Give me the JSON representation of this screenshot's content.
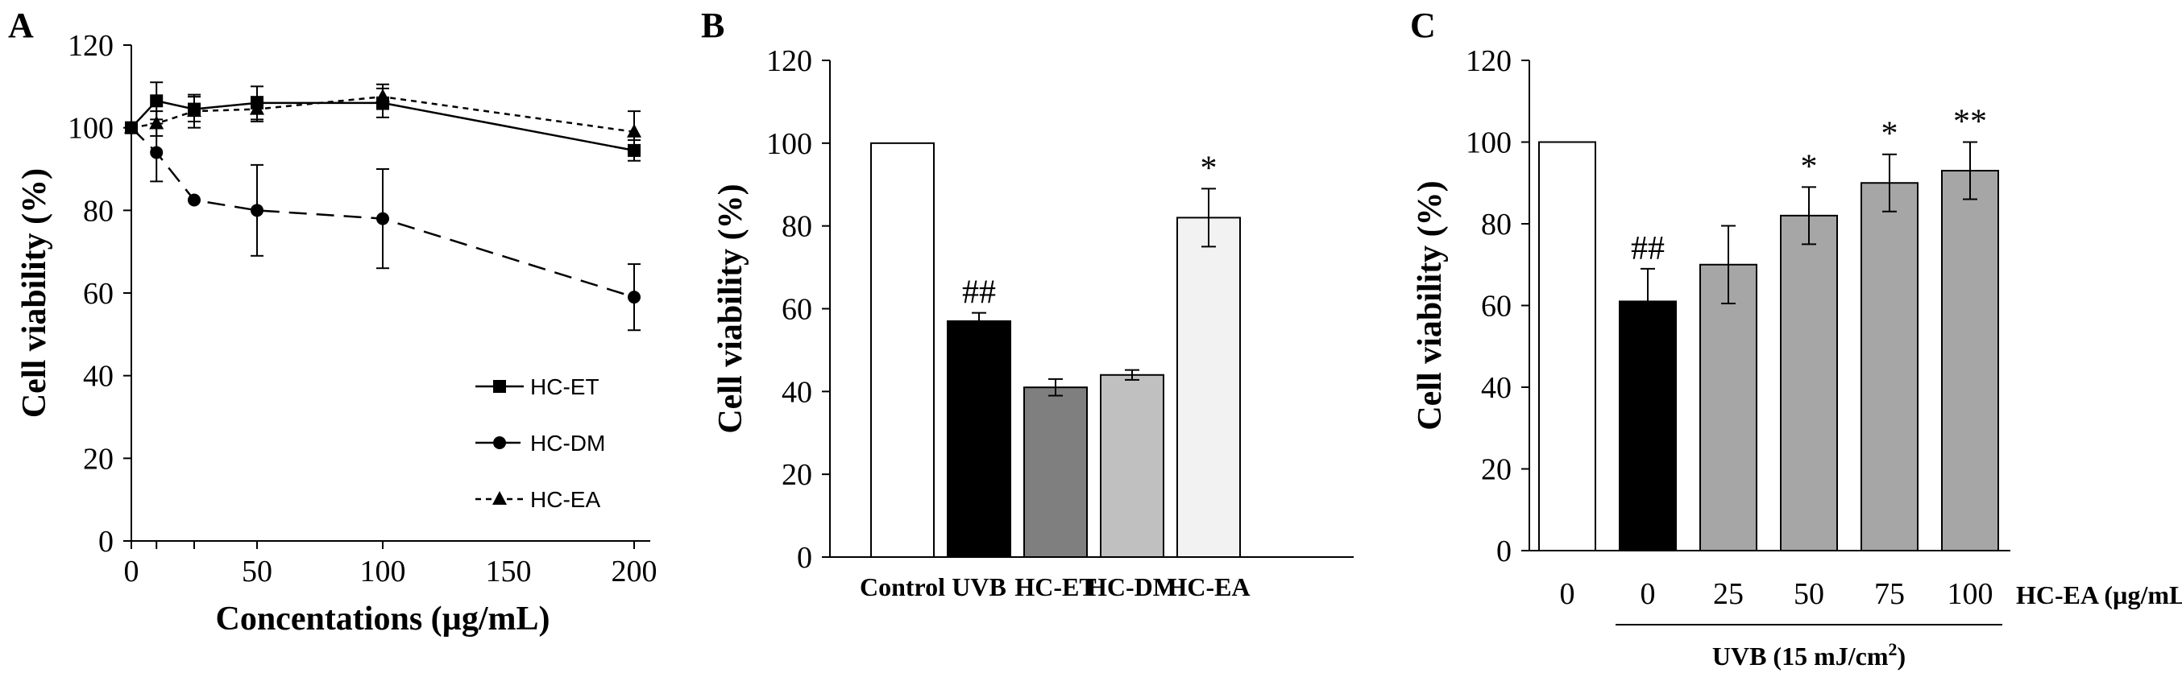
{
  "chart_data": [
    {
      "panel": "A",
      "type": "line",
      "ylabel": "Cell viability  (%)",
      "xlabel": "Concentations (µg/mL)",
      "xlim": [
        0,
        200
      ],
      "ylim": [
        0,
        120
      ],
      "xticks": [
        0,
        50,
        100,
        150,
        200
      ],
      "yticks": [
        0,
        20,
        40,
        60,
        80,
        100,
        120
      ],
      "x": [
        0,
        10,
        25,
        50,
        100,
        200
      ],
      "series": [
        {
          "name": "HC-ET",
          "style": "solid",
          "marker": "square",
          "values": [
            100,
            106.5,
            104.5,
            106,
            106,
            94.5
          ],
          "errors": [
            0,
            4.5,
            3,
            4,
            3.5,
            2.5
          ]
        },
        {
          "name": "HC-DM",
          "style": "dashed",
          "marker": "circle",
          "values": [
            100,
            94,
            82.5,
            80,
            78,
            59
          ],
          "errors": [
            0,
            7,
            0,
            11,
            12,
            8
          ]
        },
        {
          "name": "HC-EA",
          "style": "dotted",
          "marker": "triangle",
          "values": [
            100,
            101,
            104,
            104.5,
            107.5,
            99
          ],
          "errors": [
            0,
            3,
            4,
            3,
            3,
            5
          ]
        }
      ]
    },
    {
      "panel": "B",
      "type": "bar",
      "ylabel": "Cell viability  (%)",
      "ylim": [
        0,
        120
      ],
      "yticks": [
        0,
        20,
        40,
        60,
        80,
        100,
        120
      ],
      "categories": [
        "Control",
        "UVB",
        "HC-ET",
        "HC-DM",
        "HC-EA"
      ],
      "values": [
        100,
        57,
        41,
        44,
        82
      ],
      "errors": [
        0,
        2,
        2,
        1.2,
        7
      ],
      "colors": [
        "#ffffff",
        "#000000",
        "#7f7f7f",
        "#c0c0c0",
        "#f2f2f2"
      ],
      "annotations": [
        "",
        "##",
        "",
        "",
        "*"
      ]
    },
    {
      "panel": "C",
      "type": "bar",
      "ylabel": "Cell viability  (%)",
      "ylim": [
        0,
        120
      ],
      "yticks": [
        0,
        20,
        40,
        60,
        80,
        100,
        120
      ],
      "categories": [
        "0",
        "0",
        "25",
        "50",
        "75",
        "100"
      ],
      "values": [
        100,
        61,
        70,
        82,
        90,
        93
      ],
      "errors": [
        0,
        8,
        9.5,
        7,
        7,
        7
      ],
      "colors": [
        "#ffffff",
        "#000000",
        "#a6a6a6",
        "#a6a6a6",
        "#a6a6a6",
        "#a6a6a6"
      ],
      "annotations": [
        "",
        "##",
        "",
        "*",
        "*",
        "**"
      ],
      "x_right_label": "HC-EA (µg/mL)",
      "group_label_prefix": "UVB (15 mJ/cm",
      "group_label_sup": "2",
      "group_label_suffix": ")"
    }
  ]
}
